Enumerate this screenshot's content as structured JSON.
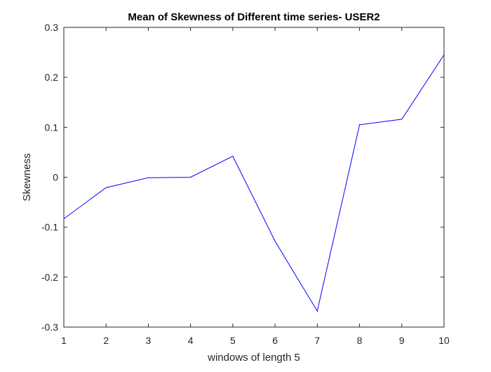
{
  "chart_data": {
    "type": "line",
    "title": "Mean of Skewness of Different time series- USER2",
    "xlabel": "windows of length 5",
    "ylabel": "Skewness",
    "xlim": [
      1,
      10
    ],
    "ylim": [
      -0.3,
      0.3
    ],
    "xticks": [
      1,
      2,
      3,
      4,
      5,
      6,
      7,
      8,
      9,
      10
    ],
    "xtick_labels": [
      "1",
      "2",
      "3",
      "4",
      "5",
      "6",
      "7",
      "8",
      "9",
      "10"
    ],
    "yticks": [
      -0.3,
      -0.2,
      -0.1,
      0,
      0.1,
      0.2,
      0.3
    ],
    "ytick_labels": [
      "-0.3",
      "-0.2",
      "-0.1",
      "0",
      "0.1",
      "0.2",
      "0.3"
    ],
    "grid": false,
    "series": [
      {
        "color": "#0000ff",
        "x": [
          1,
          2,
          3,
          4,
          5,
          6,
          7,
          8,
          9,
          10
        ],
        "values": [
          -0.083,
          -0.021,
          -0.001,
          0.0,
          0.042,
          -0.128,
          -0.268,
          0.105,
          0.116,
          0.245
        ]
      }
    ]
  }
}
